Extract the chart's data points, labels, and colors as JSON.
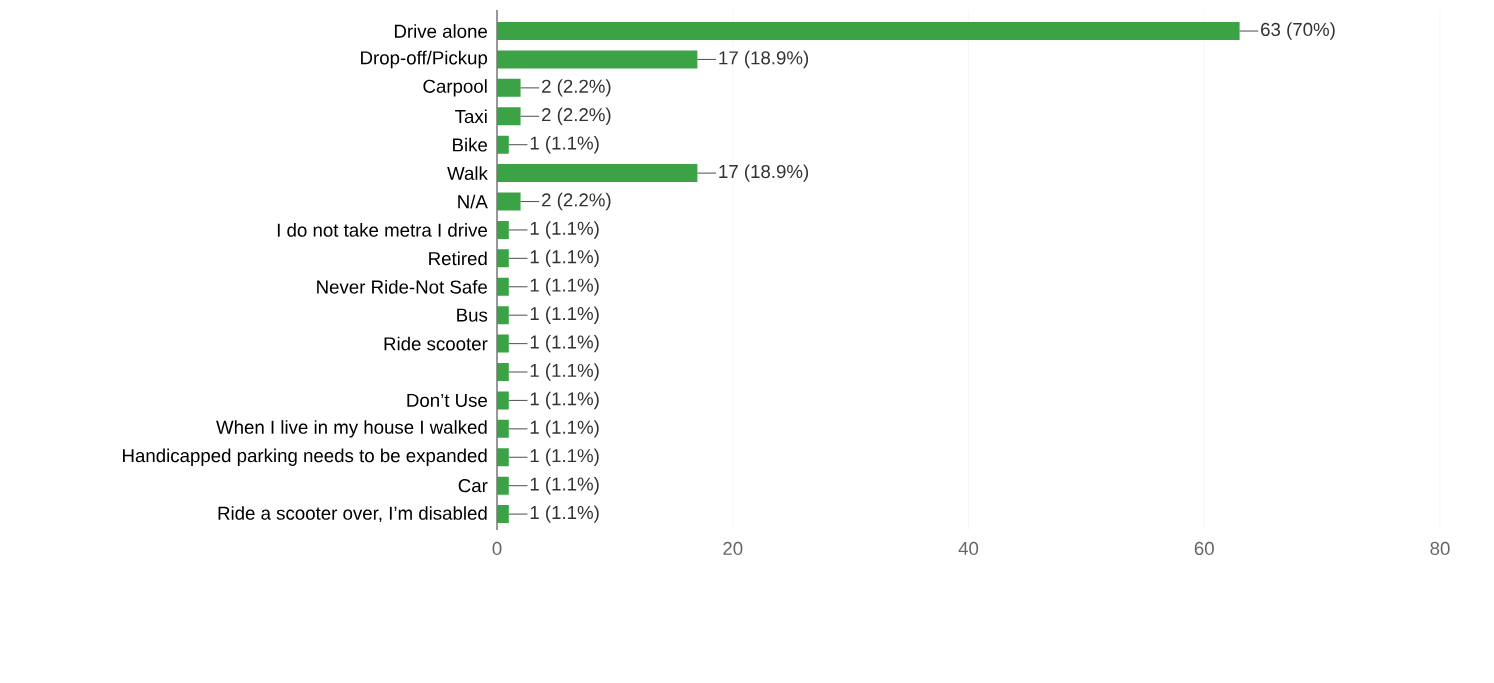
{
  "chart_data": {
    "type": "bar",
    "orientation": "horizontal",
    "categories": [
      "Drive alone",
      "Drop-off/Pickup",
      "Carpool",
      "Taxi",
      "Bike",
      "Walk",
      "N/A",
      "I do not take metra I drive",
      "Retired",
      "Never Ride-Not Safe",
      "Bus",
      "Ride scooter",
      null,
      "Don’t Use",
      "When I live in my house I walked",
      "Handicapped parking needs to be expanded",
      "Car",
      "Ride a scooter over, I’m disabled"
    ],
    "values": [
      63,
      17,
      2,
      2,
      1,
      17,
      2,
      1,
      1,
      1,
      1,
      1,
      1,
      1,
      1,
      1,
      1,
      1
    ],
    "value_labels": [
      "63 (70%)",
      "17 (18.9%)",
      "2 (2.2%)",
      "2 (2.2%)",
      "1 (1.1%)",
      "17 (18.9%)",
      "2 (2.2%)",
      "1 (1.1%)",
      "1 (1.1%)",
      "1 (1.1%)",
      "1 (1.1%)",
      "1 (1.1%)",
      "1 (1.1%)",
      "1 (1.1%)",
      "1 (1.1%)",
      "1 (1.1%)",
      "1 (1.1%)",
      "1 (1.1%)"
    ],
    "color": "#3ba245",
    "xlim": [
      0,
      80
    ],
    "xticks": [
      0,
      20,
      40,
      60,
      80
    ],
    "grid": "x"
  }
}
